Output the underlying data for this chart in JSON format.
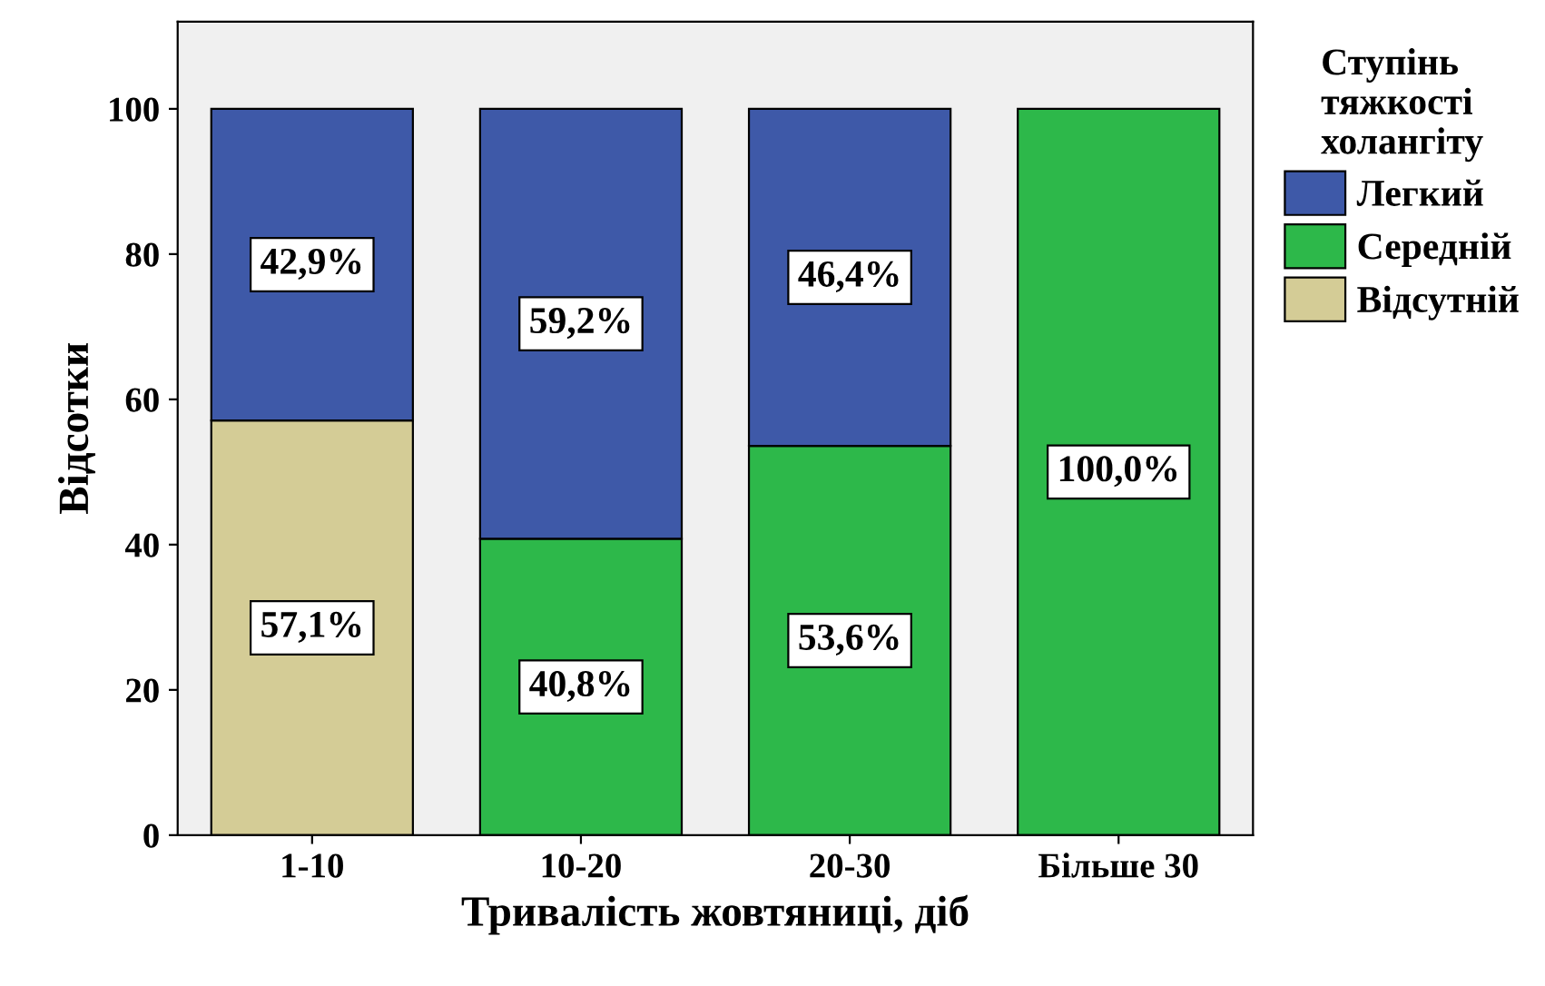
{
  "chart_data": {
    "type": "bar",
    "stacked": true,
    "xlabel": "Тривалість жовтяниці, діб",
    "ylabel": "Відсотки",
    "legend_title": "Ступінь\nтяжкості\nхолангіту",
    "categories": [
      "1-10",
      "10-20",
      "20-30",
      "Більше 30"
    ],
    "series": [
      {
        "name": "Відсутній",
        "color": "#d4cc96",
        "values": [
          57.1,
          null,
          null,
          null
        ],
        "value_labels": [
          "57,1%",
          null,
          null,
          null
        ]
      },
      {
        "name": "Середній",
        "color": "#2db84a",
        "values": [
          null,
          40.8,
          53.6,
          100.0
        ],
        "value_labels": [
          null,
          "40,8%",
          "53,6%",
          "100,0%"
        ]
      },
      {
        "name": "Легкий",
        "color": "#3e59a8",
        "values": [
          42.9,
          59.2,
          46.4,
          null
        ],
        "value_labels": [
          "42,9%",
          "59,2%",
          "46,4%",
          null
        ]
      }
    ],
    "ylim": [
      0,
      112
    ],
    "yticks": [
      0,
      20,
      40,
      60,
      80,
      100
    ],
    "grid": false,
    "legend": "right"
  }
}
